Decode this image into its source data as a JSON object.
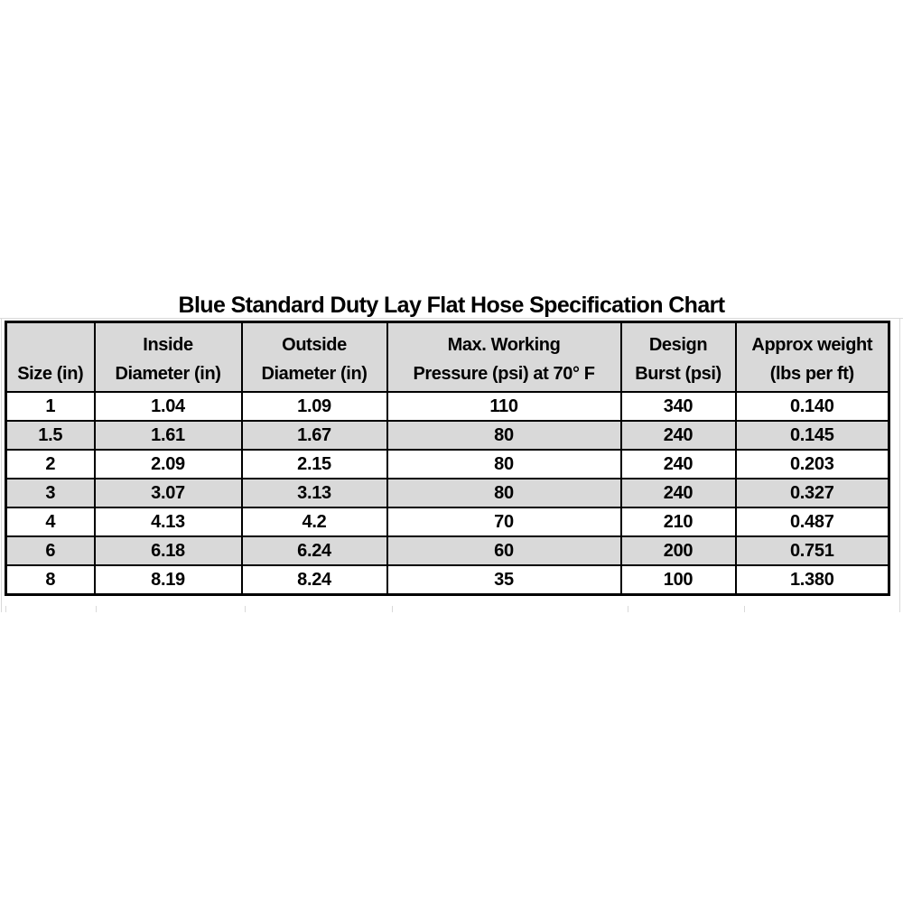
{
  "title": "Blue Standard Duty Lay Flat Hose Specification Chart",
  "chart_data": {
    "type": "table",
    "title": "Blue Standard Duty Lay Flat Hose Specification Chart",
    "columns": [
      {
        "id": "size",
        "lines": [
          "Size (in)"
        ]
      },
      {
        "id": "inside-diameter",
        "lines": [
          "Inside",
          "Diameter (in)"
        ]
      },
      {
        "id": "outside-diameter",
        "lines": [
          "Outside",
          "Diameter (in)"
        ]
      },
      {
        "id": "max-working-pressure",
        "lines": [
          "Max. Working",
          "Pressure (psi) at 70° F"
        ]
      },
      {
        "id": "design-burst",
        "lines": [
          "Design",
          "Burst (psi)"
        ]
      },
      {
        "id": "approx-weight",
        "lines": [
          "Approx weight",
          "(lbs per ft)"
        ]
      }
    ],
    "rows": [
      [
        "1",
        "1.04",
        "1.09",
        "110",
        "340",
        "0.140"
      ],
      [
        "1.5",
        "1.61",
        "1.67",
        "80",
        "240",
        "0.145"
      ],
      [
        "2",
        "2.09",
        "2.15",
        "80",
        "240",
        "0.203"
      ],
      [
        "3",
        "3.07",
        "3.13",
        "80",
        "240",
        "0.327"
      ],
      [
        "4",
        "4.13",
        "4.2",
        "70",
        "210",
        "0.487"
      ],
      [
        "6",
        "6.18",
        "6.24",
        "60",
        "200",
        "0.751"
      ],
      [
        "8",
        "8.19",
        "8.24",
        "35",
        "100",
        "1.380"
      ]
    ],
    "layout": {
      "header_fill": "#d9d9d9",
      "alt_row_fill": "#d9d9d9",
      "row_fill": "#ffffff",
      "border_color": "#000000",
      "gridline_color": "#d9d9d9",
      "shaded_row_indices": [
        1,
        3,
        5
      ],
      "legend": "none",
      "grid": "off"
    }
  }
}
